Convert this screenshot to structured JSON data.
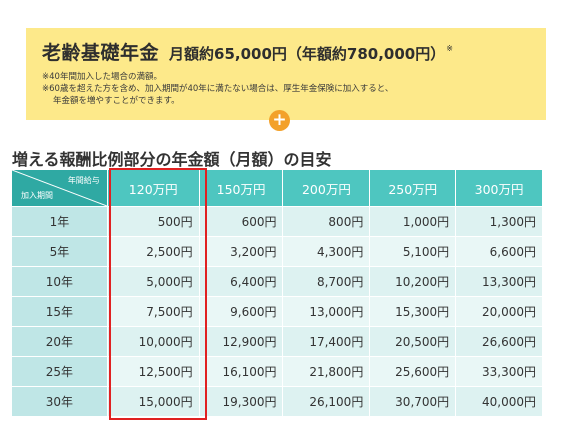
{
  "basic": {
    "title": "老齢基礎年金",
    "amount": "月額約65,000円（年額約780,000円）",
    "mark": "※",
    "notes": [
      "※40年間加入した場合の満額。",
      "※60歳を超えた方を含め、加入期間が40年に満たない場合は、厚生年金保険に加入すると、",
      "年金額を増やすことができます。"
    ]
  },
  "plus_symbol": "+",
  "section_title": "増える報酬比例部分の年金額（月額）の目安",
  "table": {
    "corner_top": "年間給与",
    "corner_bottom": "加入期間",
    "columns": [
      "120万円",
      "150万円",
      "200万円",
      "250万円",
      "300万円"
    ],
    "rows": [
      {
        "period": "1年",
        "values": [
          "500円",
          "600円",
          "800円",
          "1,000円",
          "1,300円"
        ]
      },
      {
        "period": "5年",
        "values": [
          "2,500円",
          "3,200円",
          "4,300円",
          "5,100円",
          "6,600円"
        ]
      },
      {
        "period": "10年",
        "values": [
          "5,000円",
          "6,400円",
          "8,700円",
          "10,200円",
          "13,300円"
        ]
      },
      {
        "period": "15年",
        "values": [
          "7,500円",
          "9,600円",
          "13,000円",
          "15,300円",
          "20,000円"
        ]
      },
      {
        "period": "20年",
        "values": [
          "10,000円",
          "12,900円",
          "17,400円",
          "20,500円",
          "26,600円"
        ]
      },
      {
        "period": "25年",
        "values": [
          "12,500円",
          "16,100円",
          "21,800円",
          "25,600円",
          "33,300円"
        ]
      },
      {
        "period": "30年",
        "values": [
          "15,000円",
          "19,300円",
          "26,100円",
          "30,700円",
          "40,000円"
        ]
      }
    ],
    "highlighted_column": "120万円"
  },
  "colors": {
    "basic_box": "#fde98a",
    "plus_circle": "#f3a12a",
    "header_teal": "#4ec6c0",
    "corner_teal": "#2fa9a3",
    "highlight_border": "#e02121"
  }
}
